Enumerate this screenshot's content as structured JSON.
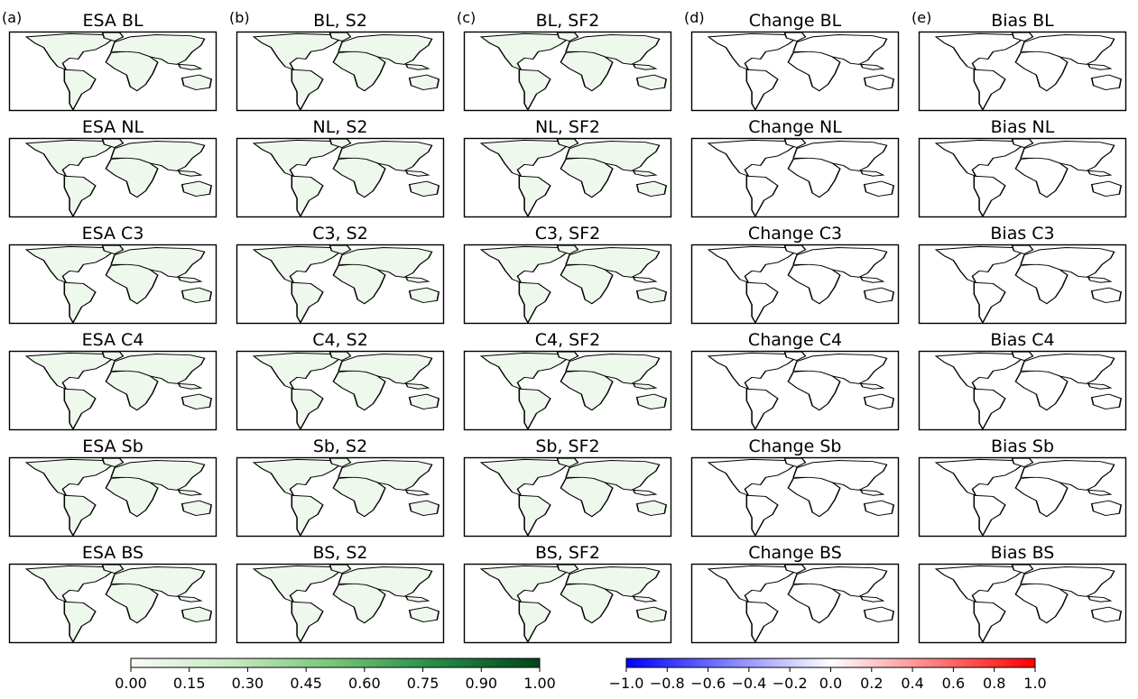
{
  "chart_data": {
    "type": "heatmap",
    "description_columns": [
      {
        "label": "(a)",
        "titles": [
          "ESA BL",
          "ESA NL",
          "ESA C3",
          "ESA C4",
          "ESA Sb",
          "ESA BS"
        ]
      },
      {
        "label": "(b)",
        "titles": [
          "BL, S2",
          "NL, S2",
          "C3, S2",
          "C4, S2",
          "Sb, S2",
          "BS, S2"
        ]
      },
      {
        "label": "(c)",
        "titles": [
          "BL, SF2",
          "NL, SF2",
          "C3, SF2",
          "C4, SF2",
          "Sb, SF2",
          "BS, SF2"
        ]
      },
      {
        "label": "(d)",
        "titles": [
          "Change BL",
          "Change NL",
          "Change C3",
          "Change C4",
          "Change Sb",
          "Change BS"
        ]
      },
      {
        "label": "(e)",
        "titles": [
          "Bias BL",
          "Bias NL",
          "Bias C3",
          "Bias C4",
          "Bias Sb",
          "Bias BS"
        ]
      }
    ],
    "colorbar_fraction": {
      "ticks": [
        "0.00",
        "0.15",
        "0.30",
        "0.45",
        "0.60",
        "0.75",
        "0.90",
        "1.00"
      ],
      "range": [
        0,
        1
      ],
      "colormap": [
        "#f7fcf5",
        "#c7e9c0",
        "#74c476",
        "#238b45",
        "#00441b"
      ]
    },
    "colorbar_difference": {
      "ticks": [
        "−1.0",
        "−0.8",
        "−0.6",
        "−0.4",
        "−0.2",
        "0.0",
        "0.2",
        "0.4",
        "0.6",
        "0.8",
        "1.0"
      ],
      "range": [
        -1,
        1
      ],
      "colormap": [
        "#0000ff",
        "#ffffff",
        "#ff0000"
      ]
    }
  },
  "colors": {
    "land": "#eef8ec",
    "diff_land": "#ffffff",
    "green_dark": "#1f7a37",
    "green_mid": "#5bb065",
    "blue": "#3b4bff",
    "red": "#ff3030"
  }
}
